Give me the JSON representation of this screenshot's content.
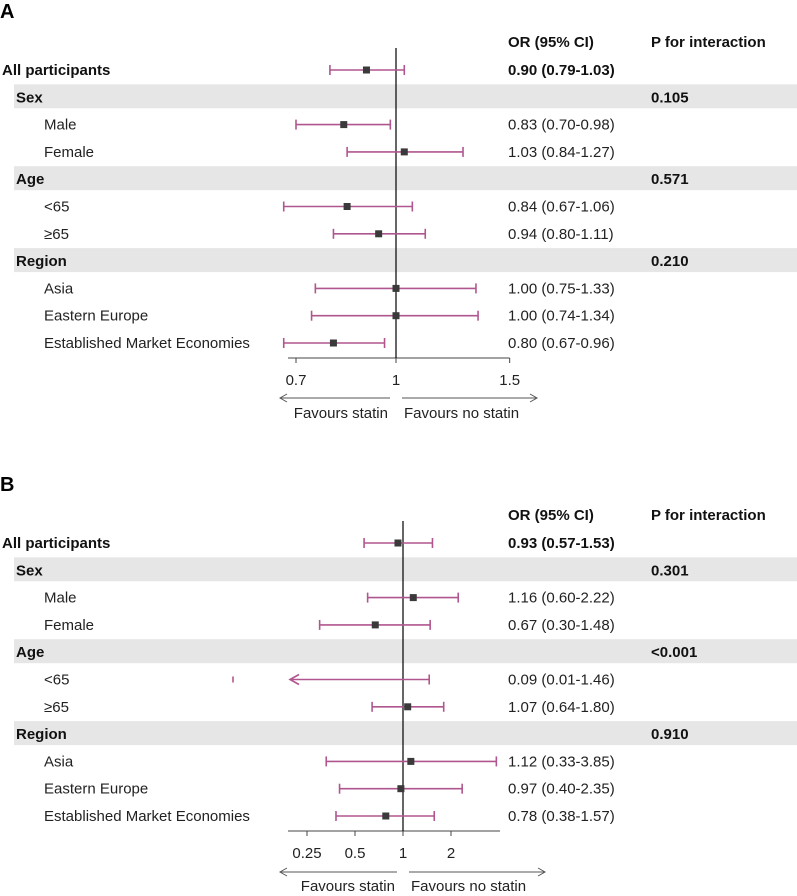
{
  "chart_data": [
    {
      "type": "forest",
      "panel": "A",
      "header_or": "OR (95% CI)",
      "header_p": "P for interaction",
      "x_scale": "log",
      "xlim": [
        0.66,
        1.6
      ],
      "ticks": [
        0.7,
        1,
        1.5
      ],
      "tick_labels": [
        "0.7",
        "1",
        "1.5"
      ],
      "favours_left": "Favours statin",
      "favours_right": "Favours no statin",
      "rows": [
        {
          "kind": "overall",
          "label": "All participants",
          "or": 0.9,
          "lo": 0.79,
          "hi": 1.03,
          "text": "0.90 (0.79-1.03)",
          "p": ""
        },
        {
          "kind": "group",
          "label": "Sex",
          "p": "0.105"
        },
        {
          "kind": "sub",
          "label": "Male",
          "or": 0.83,
          "lo": 0.7,
          "hi": 0.98,
          "text": "0.83 (0.70-0.98)"
        },
        {
          "kind": "sub",
          "label": "Female",
          "or": 1.03,
          "lo": 0.84,
          "hi": 1.27,
          "text": "1.03 (0.84-1.27)"
        },
        {
          "kind": "group",
          "label": "Age",
          "p": "0.571"
        },
        {
          "kind": "sub",
          "label": "<65",
          "or": 0.84,
          "lo": 0.67,
          "hi": 1.06,
          "text": "0.84 (0.67-1.06)"
        },
        {
          "kind": "sub",
          "label": "≥65",
          "or": 0.94,
          "lo": 0.8,
          "hi": 1.11,
          "text": "0.94 (0.80-1.11)"
        },
        {
          "kind": "group",
          "label": "Region",
          "p": "0.210"
        },
        {
          "kind": "sub",
          "label": "Asia",
          "or": 1.0,
          "lo": 0.75,
          "hi": 1.33,
          "text": "1.00 (0.75-1.33)"
        },
        {
          "kind": "sub",
          "label": "Eastern Europe",
          "or": 1.0,
          "lo": 0.74,
          "hi": 1.34,
          "text": "1.00 (0.74-1.34)"
        },
        {
          "kind": "sub",
          "label": "Established Market Economies",
          "or": 0.8,
          "lo": 0.67,
          "hi": 0.96,
          "text": "0.80 (0.67-0.96)"
        }
      ]
    },
    {
      "type": "forest",
      "panel": "B",
      "header_or": "OR (95% CI)",
      "header_p": "P for interaction",
      "x_scale": "log",
      "xlim": [
        0.18,
        3.5
      ],
      "ticks": [
        0.25,
        0.5,
        1,
        2
      ],
      "tick_labels": [
        "0.25",
        "0.5",
        "1",
        "2"
      ],
      "favours_left": "Favours statin",
      "favours_right": "Favours no statin",
      "rows": [
        {
          "kind": "overall",
          "label": "All participants",
          "or": 0.93,
          "lo": 0.57,
          "hi": 1.53,
          "text": "0.93 (0.57-1.53)",
          "p": ""
        },
        {
          "kind": "group",
          "label": "Sex",
          "p": "0.301"
        },
        {
          "kind": "sub",
          "label": "Male",
          "or": 1.16,
          "lo": 0.6,
          "hi": 2.22,
          "text": "1.16 (0.60-2.22)"
        },
        {
          "kind": "sub",
          "label": "Female",
          "or": 0.67,
          "lo": 0.3,
          "hi": 1.48,
          "text": "0.67 (0.30-1.48)"
        },
        {
          "kind": "group",
          "label": "Age",
          "p": "<0.001"
        },
        {
          "kind": "sub",
          "label": "<65",
          "or": 0.09,
          "lo": 0.01,
          "hi": 1.46,
          "text": "0.09 (0.01-1.46)",
          "left_arrow": true
        },
        {
          "kind": "sub",
          "label": "≥65",
          "or": 1.07,
          "lo": 0.64,
          "hi": 1.8,
          "text": "1.07 (0.64-1.80)"
        },
        {
          "kind": "group",
          "label": "Region",
          "p": "0.910"
        },
        {
          "kind": "sub",
          "label": "Asia",
          "or": 1.12,
          "lo": 0.33,
          "hi": 3.85,
          "text": "1.12 (0.33-3.85)"
        },
        {
          "kind": "sub",
          "label": "Eastern Europe",
          "or": 0.97,
          "lo": 0.4,
          "hi": 2.35,
          "text": "0.97 (0.40-2.35)"
        },
        {
          "kind": "sub",
          "label": "Established Market Economies",
          "or": 0.78,
          "lo": 0.38,
          "hi": 1.57,
          "text": "0.78 (0.38-1.57)"
        }
      ]
    }
  ],
  "colors": {
    "ci": "#b0568f",
    "point": "#3a3a3a",
    "band": "#e6e6e6"
  }
}
